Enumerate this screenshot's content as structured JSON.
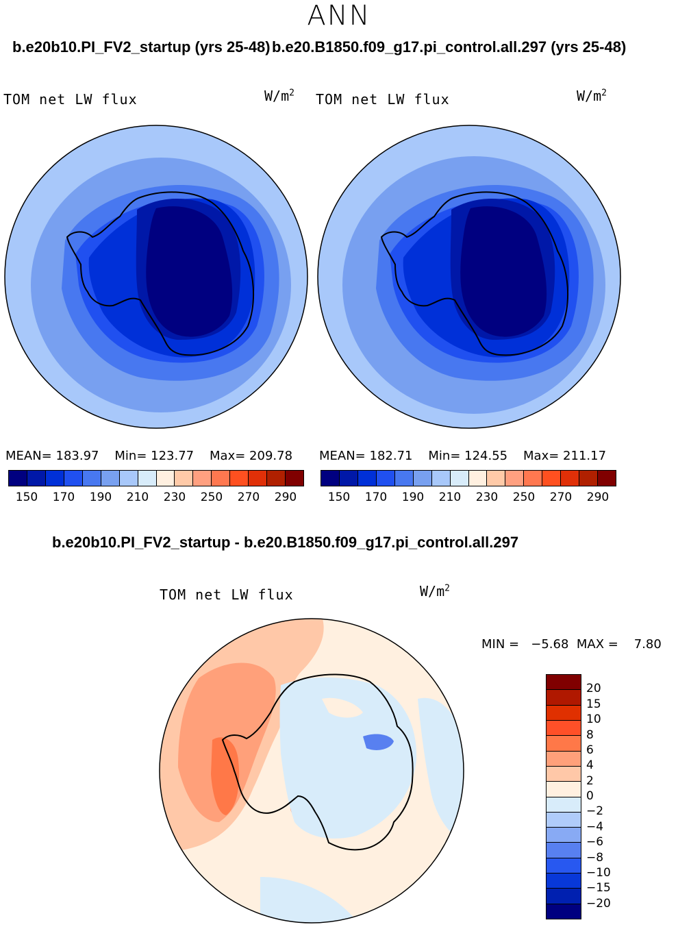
{
  "season": "ANN",
  "panel_left": {
    "case": "b.e20b10.PI_FV2_startup (yrs 25-48)",
    "variable": "TOM net LW flux",
    "units": "W/m",
    "units_sup": "2",
    "mean_label": "MEAN=",
    "mean": "183.97",
    "min_label": "Min=",
    "min": "123.77",
    "max_label": "Max=",
    "max": "209.78"
  },
  "panel_right": {
    "case": "b.e20.B1850.f09_g17.pi_control.all.297 (yrs 25-48)",
    "variable": "TOM net LW flux",
    "units": "W/m",
    "units_sup": "2",
    "mean_label": "MEAN=",
    "mean": "182.71",
    "min_label": "Min=",
    "min": "124.55",
    "max_label": "Max=",
    "max": "211.17"
  },
  "colorbar_top": {
    "colors": [
      "#000080",
      "#0018a8",
      "#0030d8",
      "#2050f0",
      "#4878f0",
      "#78a0f0",
      "#a8c8fa",
      "#d8ecfa",
      "#fff0e0",
      "#ffcaa8",
      "#ffa080",
      "#ff7850",
      "#ff5020",
      "#e03008",
      "#b02000",
      "#800000"
    ],
    "tick_labels": [
      "150",
      "170",
      "190",
      "210",
      "230",
      "250",
      "270",
      "290"
    ]
  },
  "diff": {
    "title": "b.e20b10.PI_FV2_startup - b.e20.B1850.f09_g17.pi_control.all.297",
    "variable": "TOM net LW flux",
    "units": "W/m",
    "units_sup": "2",
    "minmax_label": "MIN =   −5.68  MAX =    7.80"
  },
  "colorbar_diff": {
    "colors": [
      "#800000",
      "#b01800",
      "#e03000",
      "#ff5028",
      "#ff7848",
      "#ffa07a",
      "#ffc8a8",
      "#fff0e0",
      "#d8ecfa",
      "#b0ccfa",
      "#88aaf4",
      "#5880f0",
      "#2858f0",
      "#0838d8",
      "#0020b0",
      "#000080"
    ],
    "tick_labels": [
      "20",
      "15",
      "10",
      "8",
      "6",
      "4",
      "2",
      "0",
      "−2",
      "−4",
      "−6",
      "−8",
      "−10",
      "−15",
      "−20"
    ]
  }
}
